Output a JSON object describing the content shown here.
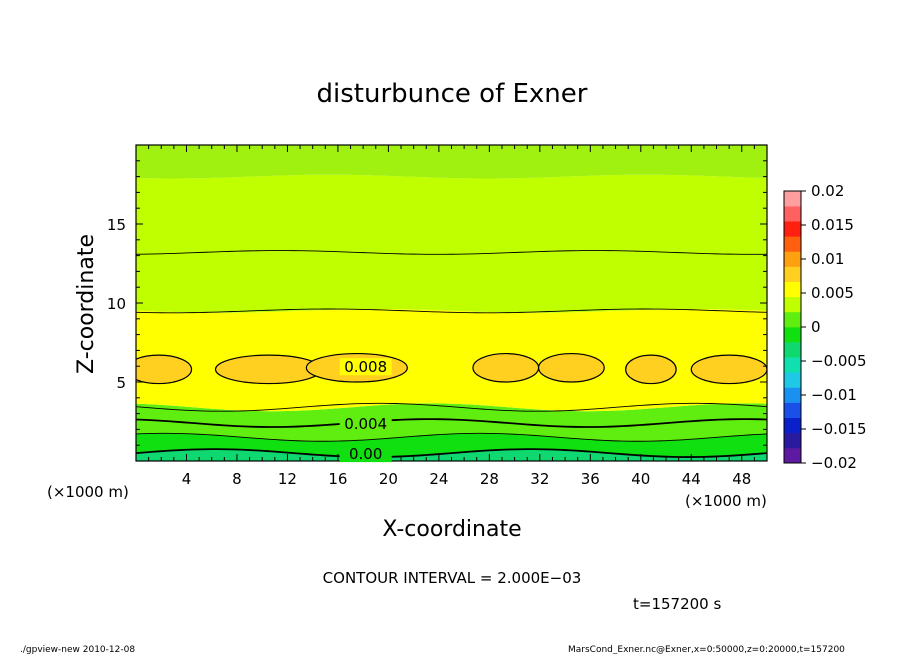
{
  "chart_data": {
    "type": "contour",
    "title": "disturbunce of Exner",
    "xlabel": "X-coordinate",
    "ylabel": "Z-coordinate",
    "x_unit": "(×1000 m)",
    "y_unit": "(×1000 m)",
    "xlim": [
      0,
      50
    ],
    "ylim": [
      0,
      20
    ],
    "x_ticks": [
      4,
      8,
      12,
      16,
      20,
      24,
      28,
      32,
      36,
      40,
      44,
      48
    ],
    "y_ticks": [
      5,
      10,
      15
    ],
    "colorbar": {
      "ticks": [
        "0.02",
        "0.015",
        "0.01",
        "0.005",
        "0",
        "−0.005",
        "−0.01",
        "−0.015",
        "−0.02"
      ],
      "range": [
        -0.02,
        0.02
      ],
      "step": 0.0025,
      "colors": [
        "#5d1aa0",
        "#2a1aa0",
        "#0a20c8",
        "#1a50e8",
        "#1a90f0",
        "#20c8e8",
        "#10e0b0",
        "#10d870",
        "#10e010",
        "#60ee10",
        "#c0ff00",
        "#ffff00",
        "#ffd020",
        "#ffa010",
        "#ff6010",
        "#ff2010",
        "#ff6060",
        "#ff9e9e"
      ]
    },
    "contour_labels": [
      "0.008",
      "0.004",
      "0.00"
    ],
    "bands": [
      {
        "z_bottom": 0.0,
        "z_top": 0.5,
        "value_range": [
          -0.0025,
          0.0
        ],
        "color": "#10d870"
      },
      {
        "z_bottom": 0.5,
        "z_top": 1.5,
        "value_range": [
          0.0,
          0.0025
        ],
        "color": "#10e010"
      },
      {
        "z_bottom": 1.5,
        "z_top": 3.4,
        "value_range": [
          0.0025,
          0.005
        ],
        "color": "#60ee10"
      },
      {
        "z_bottom": 3.4,
        "z_top": 9.5,
        "value_range": [
          0.0075,
          0.01
        ],
        "color": "#ffff00"
      },
      {
        "z_bottom": 9.5,
        "z_top": 18.0,
        "value_range": [
          0.005,
          0.0075
        ],
        "color": "#c0ff00"
      },
      {
        "z_bottom": 18.0,
        "z_top": 20.0,
        "value_range": [
          0.0025,
          0.005
        ],
        "color": "#a0f010"
      }
    ],
    "patches": [
      {
        "x_center": 1.8,
        "z_center": 5.8,
        "value_range": [
          0.01,
          0.0125
        ]
      },
      {
        "x_center": 10.5,
        "z_center": 5.8,
        "value_range": [
          0.01,
          0.0125
        ]
      },
      {
        "x_center": 17.5,
        "z_center": 5.9,
        "value_range": [
          0.01,
          0.0125
        ]
      },
      {
        "x_center": 29.3,
        "z_center": 5.9,
        "value_range": [
          0.01,
          0.0125
        ]
      },
      {
        "x_center": 34.5,
        "z_center": 5.9,
        "value_range": [
          0.01,
          0.0125
        ]
      },
      {
        "x_center": 40.8,
        "z_center": 5.8,
        "value_range": [
          0.01,
          0.0125
        ]
      },
      {
        "x_center": 47.0,
        "z_center": 5.8,
        "value_range": [
          0.01,
          0.0125
        ]
      }
    ]
  },
  "annotations": {
    "contour_interval": "CONTOUR INTERVAL = 2.000E−03",
    "time": "t=157200 s",
    "footer_left": "./gpview-new  2010-12-08",
    "footer_right": "MarsCond_Exner.nc@Exner,x=0:50000,z=0:20000,t=157200"
  }
}
